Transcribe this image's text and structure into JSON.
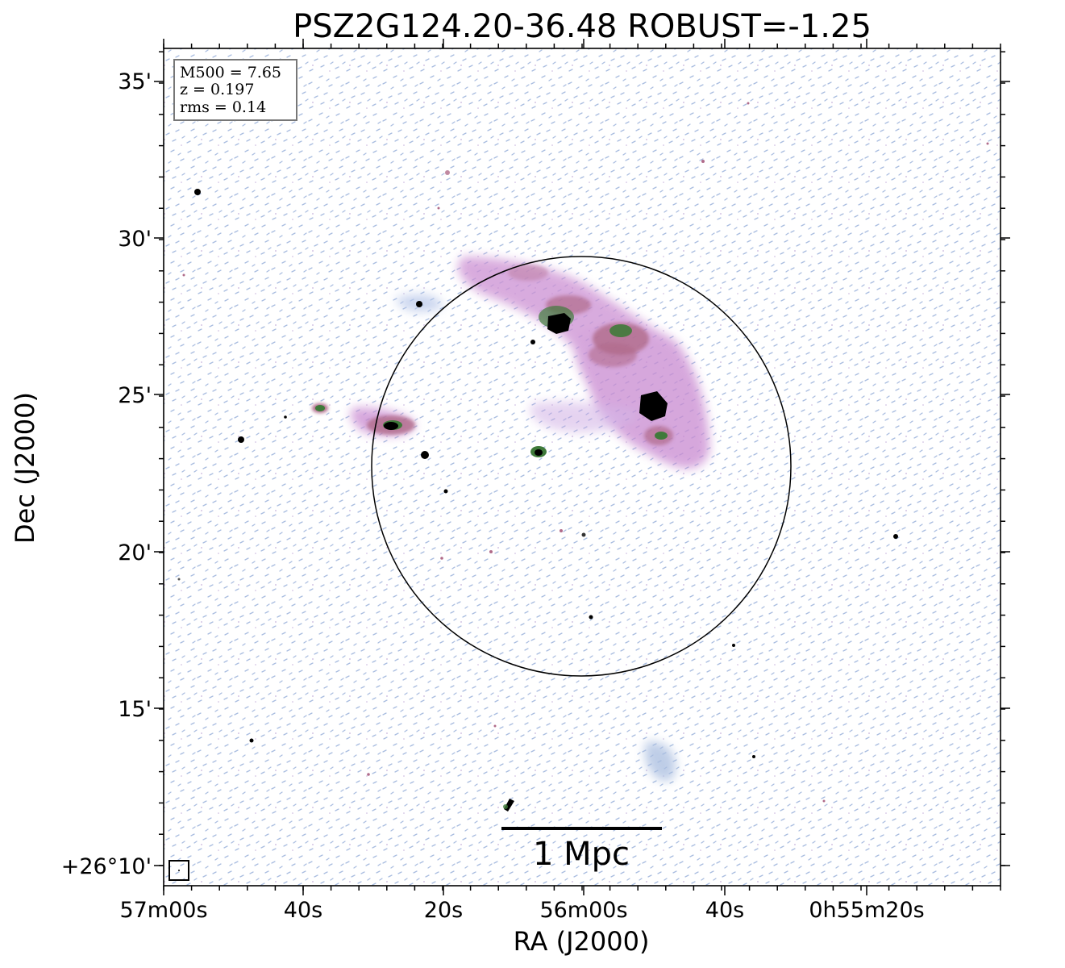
{
  "figure": {
    "title": "PSZ2G124.20-36.48 ROBUST=-1.25",
    "xlabel": "RA (J2000)",
    "ylabel": "Dec (J2000)"
  },
  "info_box": {
    "line1": "M500 = 7.65",
    "line2": "z = 0.197",
    "line3": "rms = 0.14"
  },
  "scalebar": {
    "label": "1 Mpc"
  },
  "x_ticks": [
    "57m00s",
    "40s",
    "20s",
    "56m00s",
    "40s",
    "0h55m20s"
  ],
  "y_ticks": [
    "35'",
    "30'",
    "25'",
    "20'",
    "15'",
    "+26°10'"
  ],
  "colors": {
    "noise": "#a9bde0",
    "diffuse": "#c98ad1",
    "mid": "#b06b8a",
    "bright_green": "#3f7a3a",
    "core": "#000000"
  }
}
